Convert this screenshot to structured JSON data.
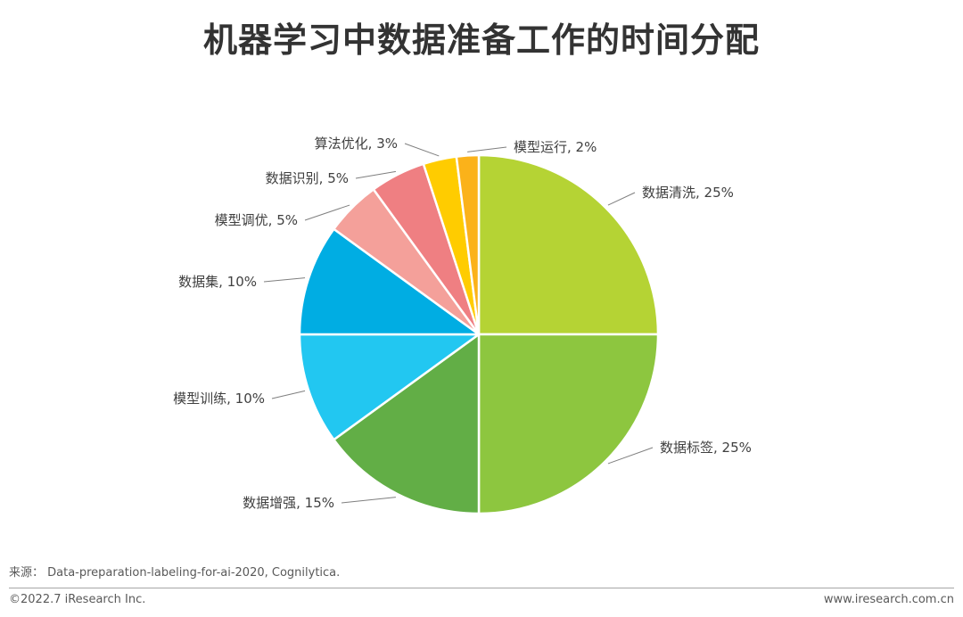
{
  "title": "机器学习中数据准备工作的时间分配",
  "chart_data": {
    "type": "pie",
    "title": "机器学习中数据准备工作的时间分配",
    "slices": [
      {
        "label": "数据清洗",
        "value": 25,
        "value_label": "数据清洗, 25%",
        "color": "#B5D334"
      },
      {
        "label": "数据标签",
        "value": 25,
        "value_label": "数据标签, 25%",
        "color": "#8DC63F"
      },
      {
        "label": "数据增强",
        "value": 15,
        "value_label": "数据增强, 15%",
        "color": "#62AE46"
      },
      {
        "label": "模型训练",
        "value": 10,
        "value_label": "模型训练, 10%",
        "color": "#22C7F1"
      },
      {
        "label": "数据集",
        "value": 10,
        "value_label": "数据集, 10%",
        "color": "#00ADE3"
      },
      {
        "label": "模型调优",
        "value": 5,
        "value_label": "模型调优, 5%",
        "color": "#F4A09A"
      },
      {
        "label": "数据识别",
        "value": 5,
        "value_label": "数据识别, 5%",
        "color": "#EF7F82"
      },
      {
        "label": "算法优化",
        "value": 3,
        "value_label": "算法优化, 3%",
        "color": "#FFCC00"
      },
      {
        "label": "模型运行",
        "value": 2,
        "value_label": "模型运行, 2%",
        "color": "#FBB21A"
      }
    ]
  },
  "source": "来源： Data-preparation-labeling-for-ai-2020, Cognilytica.",
  "copyright": "©2022.7 iResearch Inc.",
  "website": "www.iresearch.com.cn"
}
